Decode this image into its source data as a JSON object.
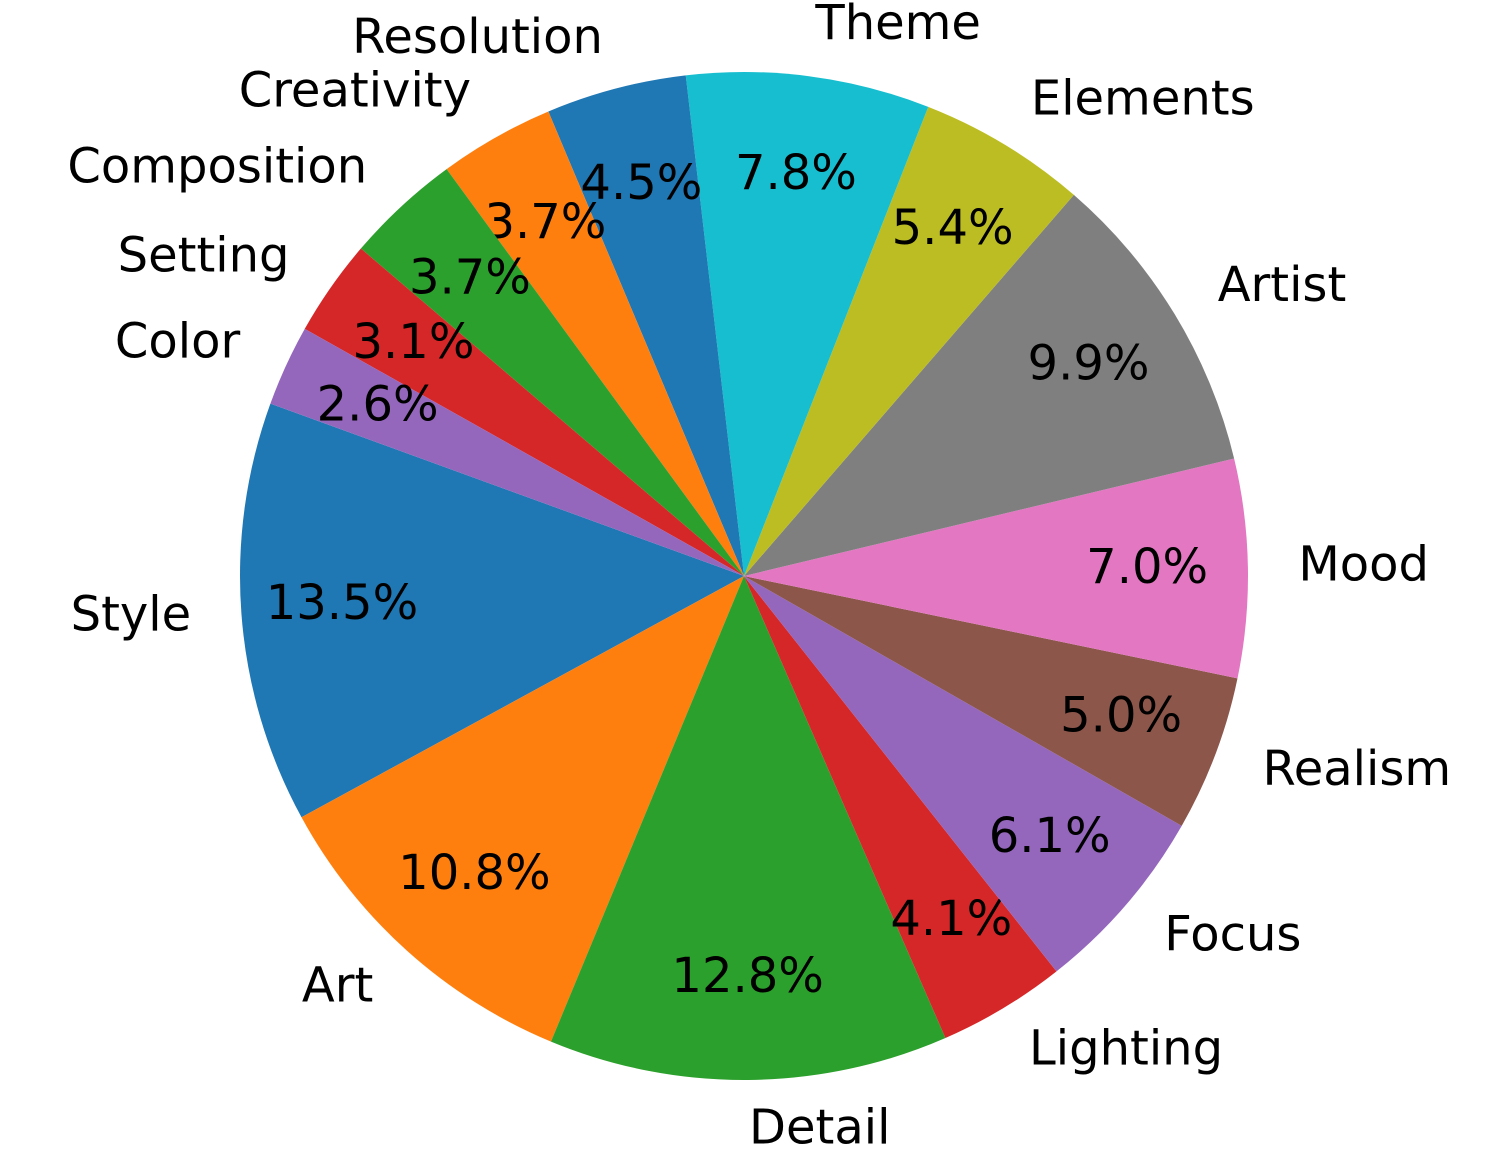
{
  "chart_data": {
    "type": "pie",
    "categories": [
      "Style",
      "Art",
      "Detail",
      "Lighting",
      "Focus",
      "Realism",
      "Mood",
      "Artist",
      "Elements",
      "Theme",
      "Resolution",
      "Creativity",
      "Composition",
      "Setting",
      "Color"
    ],
    "values": [
      13.5,
      10.8,
      12.8,
      4.1,
      6.1,
      5.0,
      7.0,
      9.9,
      5.4,
      7.8,
      4.5,
      3.7,
      3.7,
      3.1,
      2.6
    ],
    "value_labels": [
      "13.5%",
      "10.8%",
      "12.8%",
      "4.1%",
      "6.1%",
      "5.0%",
      "7.0%",
      "9.9%",
      "5.4%",
      "7.8%",
      "4.5%",
      "3.7%",
      "3.7%",
      "3.1%",
      "2.6%"
    ],
    "colors": [
      "#1f77b4",
      "#ff7f0e",
      "#2ca02c",
      "#d62728",
      "#9467bd",
      "#8c564b",
      "#e377c2",
      "#7f7f7f",
      "#bcbd22",
      "#17becf",
      "#1f77b4",
      "#ff7f0e",
      "#2ca02c",
      "#d62728",
      "#9467bd"
    ]
  }
}
